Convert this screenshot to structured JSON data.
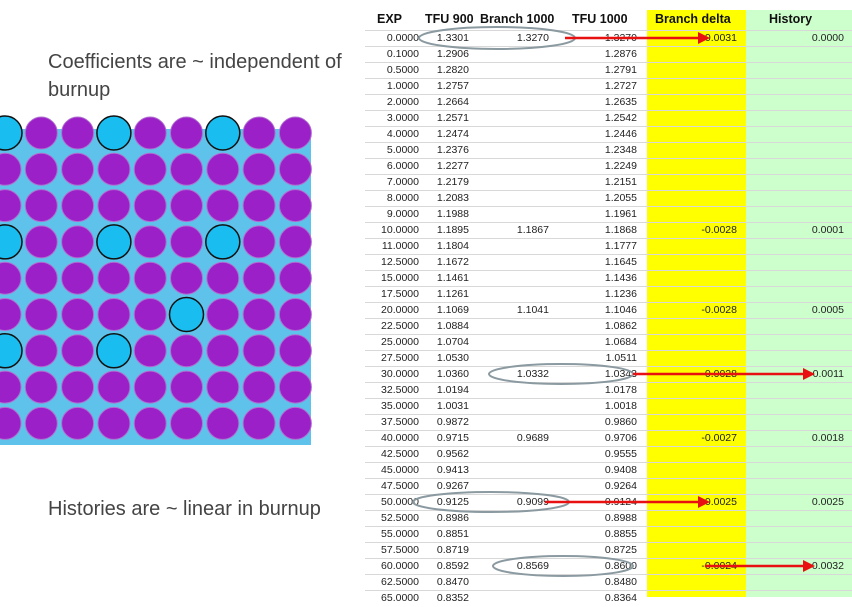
{
  "notes": {
    "coefficients": "Coefficients are ~ independent of burnup",
    "histories": "Histories are ~ linear in burnup"
  },
  "table": {
    "headers": {
      "exp": "EXP",
      "tfu900": "TFU 900",
      "branch1000": "Branch 1000",
      "tfu1000": "TFU 1000",
      "branch_delta": "Branch delta",
      "history": "History"
    },
    "rows": [
      {
        "exp": "0.0000",
        "tfu900": "1.3301",
        "branch1000": "1.3270",
        "tfu1000": "1.3270",
        "delta": "-0.0031",
        "history": "0.0000"
      },
      {
        "exp": "0.1000",
        "tfu900": "1.2906",
        "branch1000": "",
        "tfu1000": "1.2876",
        "delta": "",
        "history": ""
      },
      {
        "exp": "0.5000",
        "tfu900": "1.2820",
        "branch1000": "",
        "tfu1000": "1.2791",
        "delta": "",
        "history": ""
      },
      {
        "exp": "1.0000",
        "tfu900": "1.2757",
        "branch1000": "",
        "tfu1000": "1.2727",
        "delta": "",
        "history": ""
      },
      {
        "exp": "2.0000",
        "tfu900": "1.2664",
        "branch1000": "",
        "tfu1000": "1.2635",
        "delta": "",
        "history": ""
      },
      {
        "exp": "3.0000",
        "tfu900": "1.2571",
        "branch1000": "",
        "tfu1000": "1.2542",
        "delta": "",
        "history": ""
      },
      {
        "exp": "4.0000",
        "tfu900": "1.2474",
        "branch1000": "",
        "tfu1000": "1.2446",
        "delta": "",
        "history": ""
      },
      {
        "exp": "5.0000",
        "tfu900": "1.2376",
        "branch1000": "",
        "tfu1000": "1.2348",
        "delta": "",
        "history": ""
      },
      {
        "exp": "6.0000",
        "tfu900": "1.2277",
        "branch1000": "",
        "tfu1000": "1.2249",
        "delta": "",
        "history": ""
      },
      {
        "exp": "7.0000",
        "tfu900": "1.2179",
        "branch1000": "",
        "tfu1000": "1.2151",
        "delta": "",
        "history": ""
      },
      {
        "exp": "8.0000",
        "tfu900": "1.2083",
        "branch1000": "",
        "tfu1000": "1.2055",
        "delta": "",
        "history": ""
      },
      {
        "exp": "9.0000",
        "tfu900": "1.1988",
        "branch1000": "",
        "tfu1000": "1.1961",
        "delta": "",
        "history": ""
      },
      {
        "exp": "10.0000",
        "tfu900": "1.1895",
        "branch1000": "1.1867",
        "tfu1000": "1.1868",
        "delta": "-0.0028",
        "history": "0.0001"
      },
      {
        "exp": "11.0000",
        "tfu900": "1.1804",
        "branch1000": "",
        "tfu1000": "1.1777",
        "delta": "",
        "history": ""
      },
      {
        "exp": "12.5000",
        "tfu900": "1.1672",
        "branch1000": "",
        "tfu1000": "1.1645",
        "delta": "",
        "history": ""
      },
      {
        "exp": "15.0000",
        "tfu900": "1.1461",
        "branch1000": "",
        "tfu1000": "1.1436",
        "delta": "",
        "history": ""
      },
      {
        "exp": "17.5000",
        "tfu900": "1.1261",
        "branch1000": "",
        "tfu1000": "1.1236",
        "delta": "",
        "history": ""
      },
      {
        "exp": "20.0000",
        "tfu900": "1.1069",
        "branch1000": "1.1041",
        "tfu1000": "1.1046",
        "delta": "-0.0028",
        "history": "0.0005"
      },
      {
        "exp": "22.5000",
        "tfu900": "1.0884",
        "branch1000": "",
        "tfu1000": "1.0862",
        "delta": "",
        "history": ""
      },
      {
        "exp": "25.0000",
        "tfu900": "1.0704",
        "branch1000": "",
        "tfu1000": "1.0684",
        "delta": "",
        "history": ""
      },
      {
        "exp": "27.5000",
        "tfu900": "1.0530",
        "branch1000": "",
        "tfu1000": "1.0511",
        "delta": "",
        "history": ""
      },
      {
        "exp": "30.0000",
        "tfu900": "1.0360",
        "branch1000": "1.0332",
        "tfu1000": "1.0343",
        "delta": "-0.0028",
        "history": "0.0011"
      },
      {
        "exp": "32.5000",
        "tfu900": "1.0194",
        "branch1000": "",
        "tfu1000": "1.0178",
        "delta": "",
        "history": ""
      },
      {
        "exp": "35.0000",
        "tfu900": "1.0031",
        "branch1000": "",
        "tfu1000": "1.0018",
        "delta": "",
        "history": ""
      },
      {
        "exp": "37.5000",
        "tfu900": "0.9872",
        "branch1000": "",
        "tfu1000": "0.9860",
        "delta": "",
        "history": ""
      },
      {
        "exp": "40.0000",
        "tfu900": "0.9715",
        "branch1000": "0.9689",
        "tfu1000": "0.9706",
        "delta": "-0.0027",
        "history": "0.0018"
      },
      {
        "exp": "42.5000",
        "tfu900": "0.9562",
        "branch1000": "",
        "tfu1000": "0.9555",
        "delta": "",
        "history": ""
      },
      {
        "exp": "45.0000",
        "tfu900": "0.9413",
        "branch1000": "",
        "tfu1000": "0.9408",
        "delta": "",
        "history": ""
      },
      {
        "exp": "47.5000",
        "tfu900": "0.9267",
        "branch1000": "",
        "tfu1000": "0.9264",
        "delta": "",
        "history": ""
      },
      {
        "exp": "50.0000",
        "tfu900": "0.9125",
        "branch1000": "0.9099",
        "tfu1000": "0.9124",
        "delta": "-0.0025",
        "history": "0.0025"
      },
      {
        "exp": "52.5000",
        "tfu900": "0.8986",
        "branch1000": "",
        "tfu1000": "0.8988",
        "delta": "",
        "history": ""
      },
      {
        "exp": "55.0000",
        "tfu900": "0.8851",
        "branch1000": "",
        "tfu1000": "0.8855",
        "delta": "",
        "history": ""
      },
      {
        "exp": "57.5000",
        "tfu900": "0.8719",
        "branch1000": "",
        "tfu1000": "0.8725",
        "delta": "",
        "history": ""
      },
      {
        "exp": "60.0000",
        "tfu900": "0.8592",
        "branch1000": "0.8569",
        "tfu1000": "0.8600",
        "delta": "-0.0024",
        "history": "0.0032"
      },
      {
        "exp": "62.5000",
        "tfu900": "0.8470",
        "branch1000": "",
        "tfu1000": "0.8480",
        "delta": "",
        "history": ""
      },
      {
        "exp": "65.0000",
        "tfu900": "0.8352",
        "branch1000": "",
        "tfu1000": "0.8364",
        "delta": "",
        "history": ""
      }
    ]
  },
  "colors": {
    "title": "#e0403a",
    "delta_band": "#ffff00",
    "history_band": "#ccffcc",
    "arrow": "#e81010",
    "callout_ring": "#8a9aa0",
    "lattice_bg": "#5ec2ea",
    "fuel_pin": "#9c20c8",
    "water_hole": "#19bdf0"
  },
  "lattice": {
    "description_icon": "fuel-lattice-diagram",
    "water_holes": [
      [
        0,
        0
      ],
      [
        0,
        3
      ],
      [
        0,
        6
      ],
      [
        3,
        0
      ],
      [
        3,
        3
      ],
      [
        3,
        6
      ],
      [
        5,
        5
      ],
      [
        6,
        0
      ],
      [
        6,
        3
      ]
    ]
  }
}
